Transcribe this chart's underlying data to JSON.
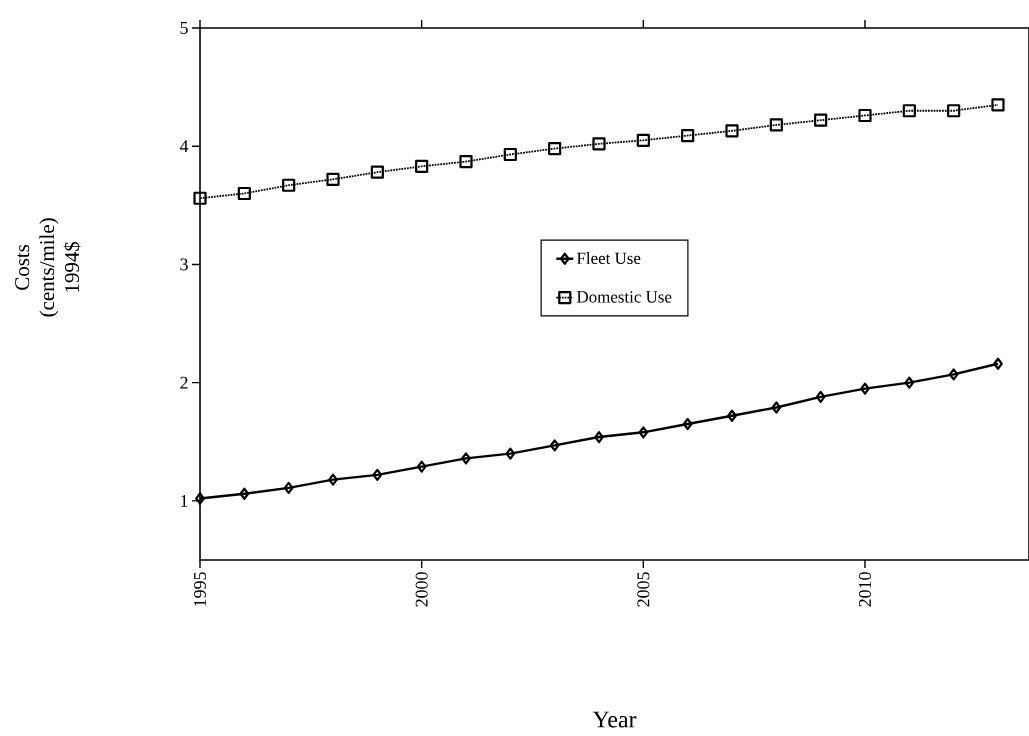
{
  "chart_data": {
    "type": "line",
    "xlabel": "Year",
    "ylabel": "Costs (cents/mile) 1994$",
    "x": [
      1995,
      1996,
      1997,
      1998,
      1999,
      2000,
      2001,
      2002,
      2003,
      2004,
      2005,
      2006,
      2007,
      2008,
      2009,
      2010,
      2011,
      2012,
      2013
    ],
    "series": [
      {
        "name": "Fleet Use",
        "color": "#000000",
        "marker": "diamond",
        "line_style": "solid",
        "values": [
          1.02,
          1.06,
          1.11,
          1.18,
          1.22,
          1.29,
          1.36,
          1.4,
          1.47,
          1.54,
          1.58,
          1.65,
          1.72,
          1.79,
          1.88,
          1.95,
          2.0,
          2.07,
          2.16
        ]
      },
      {
        "name": "Domestic Use",
        "color": "#000000",
        "marker": "square",
        "line_style": "dotted",
        "values": [
          3.56,
          3.6,
          3.67,
          3.72,
          3.78,
          3.83,
          3.87,
          3.93,
          3.98,
          4.02,
          4.05,
          4.09,
          4.13,
          4.18,
          4.22,
          4.26,
          4.3,
          4.3,
          4.35
        ]
      }
    ],
    "xlim": [
      1995,
      2013.7
    ],
    "ylim": [
      0.5,
      5
    ],
    "xticks": [
      1995,
      2000,
      2005,
      2010
    ],
    "yticks": [
      1,
      2,
      3,
      4,
      5
    ],
    "grid": false,
    "legend": "center"
  }
}
